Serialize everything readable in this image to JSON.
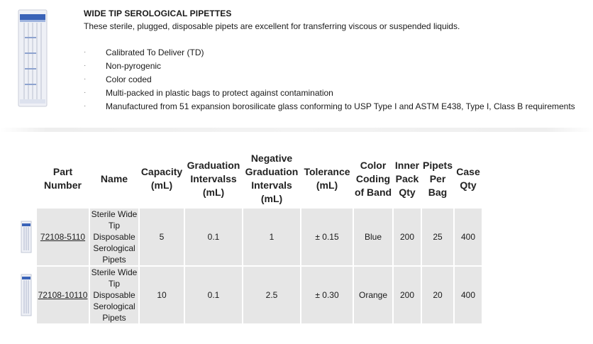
{
  "product": {
    "title": "WIDE TIP SEROLOGICAL PIPETTES",
    "description": "These sterile, plugged, disposable pipets are excellent for transferring viscous or suspended liquids.",
    "bullet_glyph": "·",
    "features": [
      "Calibrated To Deliver (TD)",
      "Non-pyrogenic",
      "Color coded",
      "Multi-packed in plastic bags to protect against contamination",
      "Manufactured from 51 expansion borosilicate glass conforming to USP Type I and ASTM E438, Type I, Class B requirements"
    ]
  },
  "table": {
    "headers": {
      "part_number": "Part Number",
      "name": "Name",
      "capacity": "Capacity (mL)",
      "graduation": "Graduation Intervalss (mL)",
      "neg_graduation": "Negative Graduation Intervals (mL)",
      "tolerance": "Tolerance (mL)",
      "color_coding": "Color Coding of Band",
      "inner_pack": "Inner Pack Qty",
      "pipets_per_bag": "Pipets Per Bag",
      "case_qty": "Case Qty"
    },
    "rows": [
      {
        "part_number": "72108-5110",
        "name": "Sterile Wide Tip Disposable Serological Pipets",
        "capacity": "5",
        "graduation": "0.1",
        "neg_graduation": "1",
        "tolerance": "± 0.15",
        "color_coding": "Blue",
        "inner_pack": "200",
        "pipets_per_bag": "25",
        "case_qty": "400"
      },
      {
        "part_number": "72108-10110",
        "name": "Sterile Wide Tip Disposable Serological Pipets",
        "capacity": "10",
        "graduation": "0.1",
        "neg_graduation": "2.5",
        "tolerance": "± 0.30",
        "color_coding": "Orange",
        "inner_pack": "200",
        "pipets_per_bag": "20",
        "case_qty": "400"
      }
    ]
  }
}
